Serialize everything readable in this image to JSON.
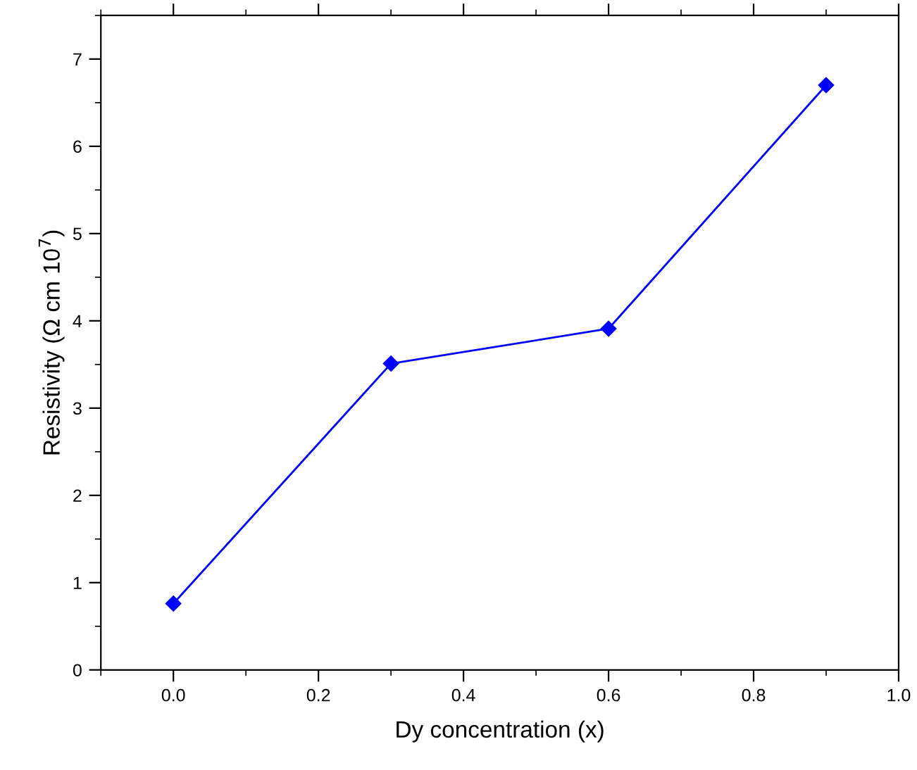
{
  "chart_data": {
    "type": "line",
    "xlabel": "Dy concentration (x)",
    "ylabel": "Resistivity (Ω cm 10$^{7}$)",
    "x": [
      0.0,
      0.3,
      0.6,
      0.9
    ],
    "series": [
      {
        "color": "#0000ff",
        "values": [
          0.76,
          3.51,
          3.91,
          6.7
        ]
      }
    ],
    "xlim": [
      -0.1,
      1.0
    ],
    "xticks": [
      {
        "value": 0.0,
        "label": "0.0"
      },
      {
        "value": 0.2,
        "label": "0.2"
      },
      {
        "value": 0.4,
        "label": "0.4"
      },
      {
        "value": 0.6,
        "label": "0.6"
      },
      {
        "value": 0.8,
        "label": "0.8"
      },
      {
        "value": 1.0,
        "label": "1.0"
      }
    ],
    "ylim": [
      0,
      7.5
    ],
    "yticks": [
      0,
      1,
      2,
      3,
      4,
      5,
      6,
      7
    ],
    "marker": "diamond",
    "line_style": "solid",
    "grid": false,
    "legend": false
  }
}
